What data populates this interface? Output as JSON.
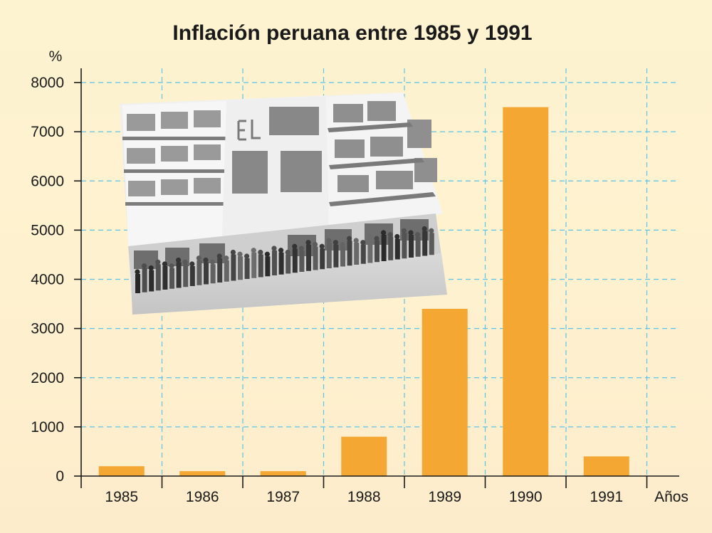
{
  "chart_data": {
    "type": "bar",
    "title": "Inflación peruana entre 1985 y 1991",
    "xlabel": "Años",
    "ylabel": "%",
    "categories": [
      "1985",
      "1986",
      "1987",
      "1988",
      "1989",
      "1990",
      "1991"
    ],
    "values": [
      200,
      100,
      100,
      800,
      3400,
      7500,
      400
    ],
    "ylim": [
      0,
      8000
    ],
    "yticks": [
      "0",
      "1000",
      "2000",
      "3000",
      "4000",
      "5000",
      "6000",
      "7000",
      "8000"
    ],
    "grid": true,
    "bar_color": "#f4a732",
    "grid_color": "#5ec3e6"
  },
  "photo": {
    "subject": "black-and-white photo of a building with a long queue of people"
  }
}
